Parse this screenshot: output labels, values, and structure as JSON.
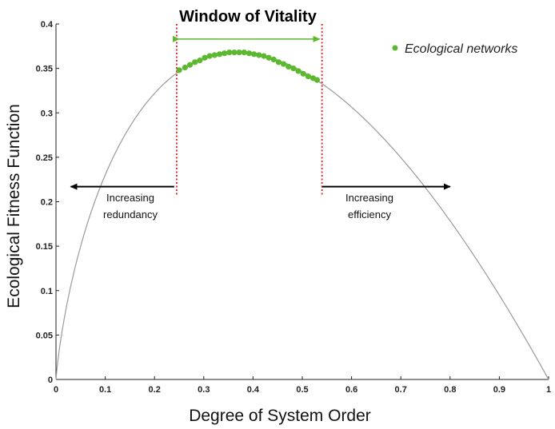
{
  "chart_data": {
    "type": "scatter",
    "title": "Window of Vitality",
    "xlabel": "Degree of System Order",
    "ylabel": "Ecological Fitness Function",
    "xlim": [
      0,
      1
    ],
    "ylim": [
      0,
      0.4
    ],
    "x_ticks": [
      "0",
      "0.1",
      "0.2",
      "0.3",
      "0.4",
      "0.5",
      "0.6",
      "0.7",
      "0.8",
      "0.9",
      "1"
    ],
    "y_ticks": [
      "0",
      "0.05",
      "0.1",
      "0.15",
      "0.2",
      "0.25",
      "0.3",
      "0.35",
      "0.4"
    ],
    "grid": false,
    "legend": {
      "placement": "top-right",
      "entries": [
        "Ecological networks"
      ]
    },
    "colors": {
      "curve": "#9a9a9a",
      "points": "#5cb82e",
      "window_lines": "#e02020",
      "window_arrow": "#5cb82e",
      "arrows": "#000000"
    },
    "curve": {
      "description_function": "fitness",
      "x_range": [
        0,
        1
      ]
    },
    "window": {
      "x_start": 0.245,
      "x_end": 0.54
    },
    "series": [
      {
        "name": "Ecological networks",
        "points": [
          [
            0.25,
            0.348
          ],
          [
            0.262,
            0.351
          ],
          [
            0.272,
            0.354
          ],
          [
            0.282,
            0.357
          ],
          [
            0.292,
            0.359
          ],
          [
            0.302,
            0.362
          ],
          [
            0.312,
            0.364
          ],
          [
            0.322,
            0.365
          ],
          [
            0.332,
            0.366
          ],
          [
            0.342,
            0.367
          ],
          [
            0.352,
            0.368
          ],
          [
            0.362,
            0.368
          ],
          [
            0.372,
            0.368
          ],
          [
            0.382,
            0.368
          ],
          [
            0.392,
            0.367
          ],
          [
            0.402,
            0.366
          ],
          [
            0.412,
            0.365
          ],
          [
            0.422,
            0.364
          ],
          [
            0.432,
            0.362
          ],
          [
            0.442,
            0.36
          ],
          [
            0.452,
            0.357
          ],
          [
            0.462,
            0.355
          ],
          [
            0.472,
            0.352
          ],
          [
            0.482,
            0.35
          ],
          [
            0.492,
            0.347
          ],
          [
            0.502,
            0.344
          ],
          [
            0.512,
            0.341
          ],
          [
            0.522,
            0.339
          ],
          [
            0.53,
            0.337
          ]
        ]
      }
    ],
    "annotations": {
      "left": {
        "line1": "Increasing",
        "line2": "redundancy"
      },
      "right": {
        "line1": "Increasing",
        "line2": "efficiency"
      }
    },
    "arrows": {
      "left": {
        "from_x": 0.24,
        "to_x": 0.03,
        "y": 0.217
      },
      "right": {
        "from_x": 0.54,
        "to_x": 0.8,
        "y": 0.217
      },
      "window": {
        "from_x": 0.25,
        "to_x": 0.535,
        "y": 0.383
      }
    }
  }
}
